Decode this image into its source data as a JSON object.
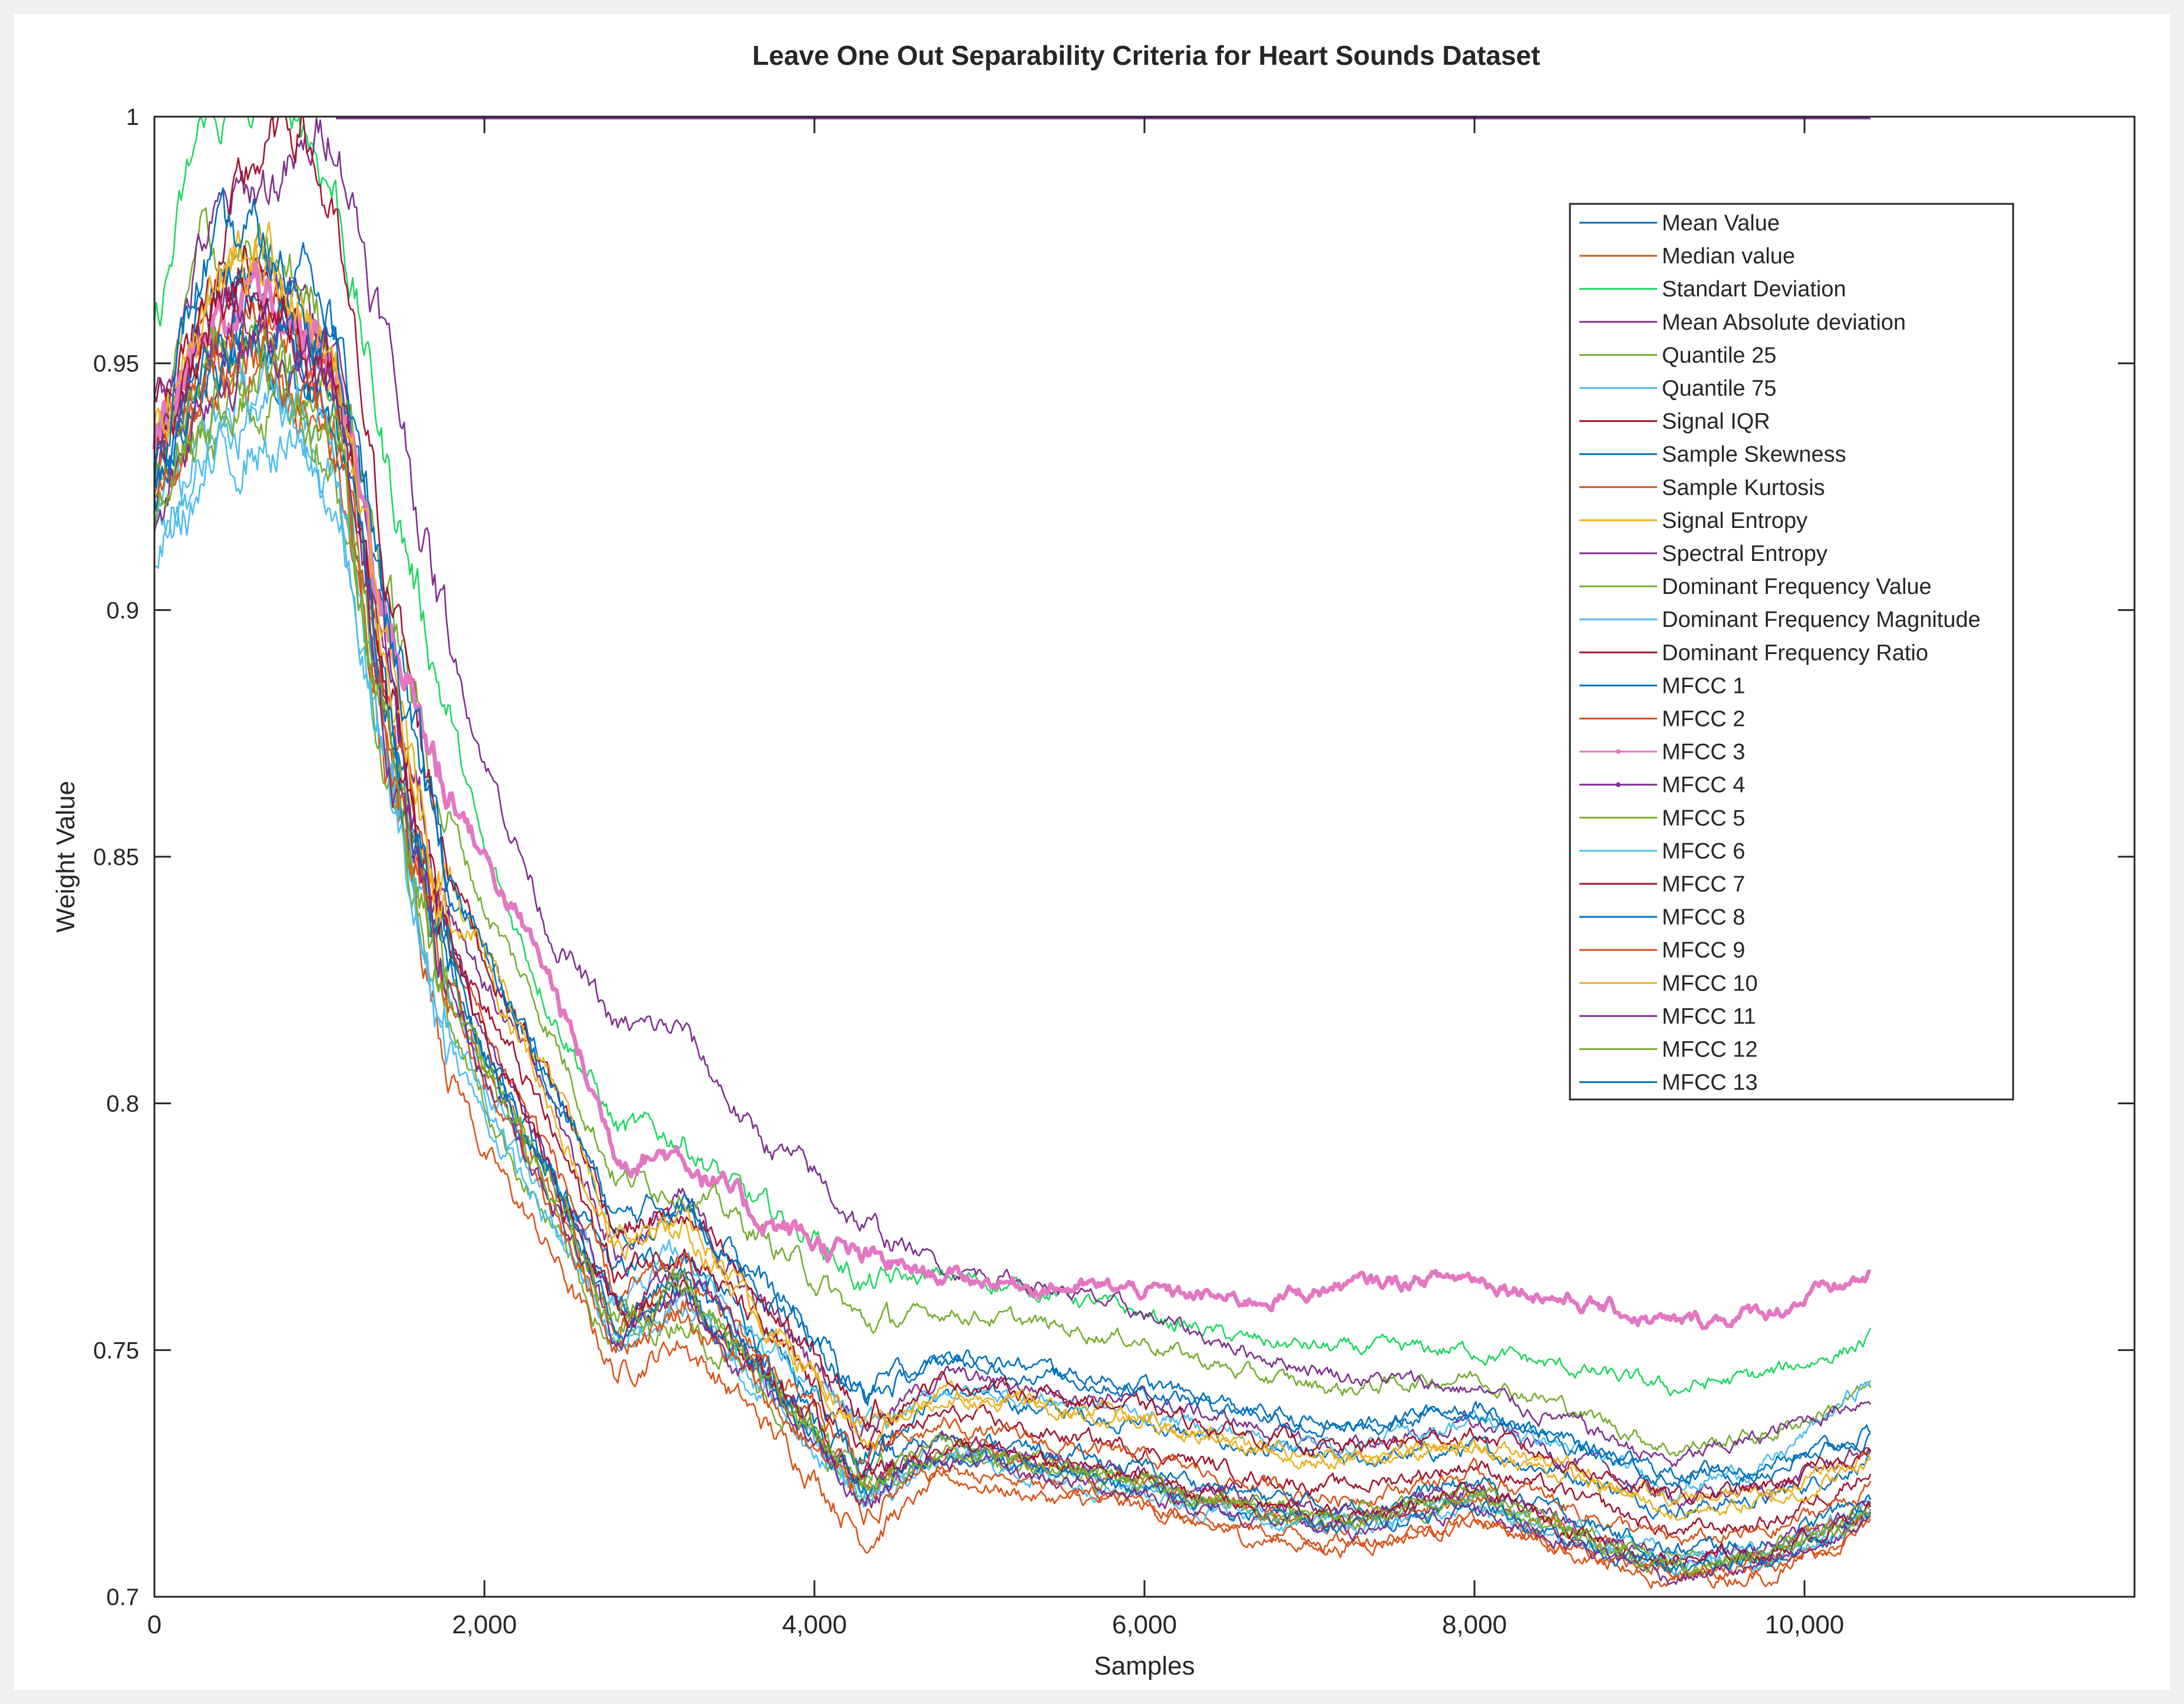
{
  "chart_data": {
    "type": "line",
    "title": "Leave One Out Separability Criteria for Heart Sounds Dataset",
    "xlabel": "Samples",
    "ylabel": "Weight Value",
    "xlim": [
      0,
      12000
    ],
    "ylim": [
      0.7,
      1
    ],
    "x_ticks": [
      0,
      2000,
      4000,
      6000,
      8000,
      10000
    ],
    "x_tick_labels": [
      "0",
      "2,000",
      "4,000",
      "6,000",
      "8,000",
      "10,000"
    ],
    "y_ticks": [
      0.7,
      0.75,
      0.8,
      0.85,
      0.9,
      0.95,
      1
    ],
    "y_tick_labels": [
      "0.7",
      "0.75",
      "0.8",
      "0.85",
      "0.9",
      "0.95",
      "1"
    ],
    "grid": false,
    "legend_position": "top-right",
    "x_anchors": [
      0,
      300,
      600,
      900,
      1100,
      1400,
      1700,
      2000,
      2400,
      2800,
      3200,
      3600,
      4000,
      4300,
      4800,
      5400,
      6000,
      6600,
      7200,
      8000,
      8600,
      9200,
      9800,
      10400
    ],
    "series": [
      {
        "name": "Mean Value",
        "color": "#0072bd",
        "values": [
          0.925,
          0.945,
          0.955,
          0.945,
          0.935,
          0.88,
          0.835,
          0.81,
          0.785,
          0.765,
          0.77,
          0.755,
          0.74,
          0.73,
          0.742,
          0.738,
          0.735,
          0.73,
          0.727,
          0.73,
          0.725,
          0.718,
          0.72,
          0.728
        ]
      },
      {
        "name": "Median value",
        "color": "#d95319",
        "values": [
          0.92,
          0.94,
          0.95,
          0.94,
          0.93,
          0.87,
          0.82,
          0.79,
          0.77,
          0.745,
          0.752,
          0.738,
          0.725,
          0.712,
          0.724,
          0.72,
          0.718,
          0.712,
          0.71,
          0.715,
          0.71,
          0.704,
          0.706,
          0.715
        ]
      },
      {
        "name": "Standart Deviation",
        "color": "#1ed760",
        "values": [
          0.955,
          1.0,
          1.0,
          1.0,
          0.985,
          0.93,
          0.89,
          0.85,
          0.82,
          0.795,
          0.793,
          0.78,
          0.773,
          0.763,
          0.765,
          0.762,
          0.757,
          0.752,
          0.75,
          0.75,
          0.746,
          0.742,
          0.745,
          0.752
        ]
      },
      {
        "name": "Mean Absolute deviation",
        "color": "#7e2f8e",
        "values": [
          0.93,
          0.955,
          0.965,
          0.96,
          0.95,
          0.895,
          0.85,
          0.825,
          0.8,
          0.77,
          0.78,
          0.762,
          0.748,
          0.735,
          0.745,
          0.742,
          0.74,
          0.735,
          0.73,
          0.735,
          0.728,
          0.72,
          0.722,
          0.73
        ]
      },
      {
        "name": "Quantile 25",
        "color": "#77ac30",
        "values": [
          0.93,
          0.975,
          0.97,
          0.965,
          0.955,
          0.905,
          0.865,
          0.84,
          0.815,
          0.785,
          0.783,
          0.775,
          0.765,
          0.755,
          0.758,
          0.755,
          0.752,
          0.745,
          0.742,
          0.745,
          0.738,
          0.73,
          0.733,
          0.742
        ]
      },
      {
        "name": "Quantile 75",
        "color": "#4dbeee",
        "values": [
          0.92,
          0.93,
          0.94,
          0.935,
          0.925,
          0.875,
          0.83,
          0.805,
          0.785,
          0.76,
          0.77,
          0.755,
          0.742,
          0.733,
          0.742,
          0.74,
          0.737,
          0.733,
          0.73,
          0.736,
          0.73,
          0.722,
          0.727,
          0.744
        ]
      },
      {
        "name": "Signal IQR",
        "color": "#a2142f",
        "values": [
          0.94,
          0.96,
          0.97,
          0.96,
          0.95,
          0.89,
          0.845,
          0.82,
          0.795,
          0.765,
          0.772,
          0.757,
          0.742,
          0.73,
          0.737,
          0.733,
          0.73,
          0.725,
          0.722,
          0.727,
          0.72,
          0.713,
          0.715,
          0.726
        ]
      },
      {
        "name": "Sample Skewness",
        "color": "#0072bd",
        "values": [
          0.93,
          0.96,
          0.97,
          0.965,
          0.955,
          0.9,
          0.855,
          0.83,
          0.805,
          0.775,
          0.78,
          0.766,
          0.752,
          0.74,
          0.748,
          0.745,
          0.742,
          0.738,
          0.733,
          0.738,
          0.73,
          0.725,
          0.727,
          0.733
        ]
      },
      {
        "name": "Sample Kurtosis",
        "color": "#d95319",
        "values": [
          0.93,
          0.955,
          0.96,
          0.955,
          0.945,
          0.885,
          0.84,
          0.815,
          0.79,
          0.76,
          0.767,
          0.752,
          0.738,
          0.727,
          0.735,
          0.731,
          0.728,
          0.723,
          0.72,
          0.725,
          0.718,
          0.711,
          0.713,
          0.722
        ]
      },
      {
        "name": "Signal Entropy",
        "color": "#edb120",
        "values": [
          0.935,
          0.96,
          0.975,
          0.96,
          0.945,
          0.885,
          0.845,
          0.83,
          0.8,
          0.77,
          0.775,
          0.76,
          0.745,
          0.735,
          0.742,
          0.739,
          0.736,
          0.731,
          0.728,
          0.731,
          0.726,
          0.719,
          0.721,
          0.729
        ]
      },
      {
        "name": "Spectral Entropy",
        "color": "#7e2f8e",
        "values": [
          0.94,
          0.975,
          0.985,
          0.99,
          1.0,
          0.955,
          0.905,
          0.87,
          0.835,
          0.815,
          0.815,
          0.795,
          0.785,
          0.775,
          0.767,
          0.763,
          0.757,
          0.75,
          0.745,
          0.742,
          0.735,
          0.727,
          0.733,
          0.741
        ]
      },
      {
        "name": "Dominant Frequency Value",
        "color": "#77ac30",
        "values": [
          0.925,
          0.935,
          0.945,
          0.94,
          0.93,
          0.87,
          0.825,
          0.8,
          0.775,
          0.75,
          0.757,
          0.745,
          0.731,
          0.72,
          0.729,
          0.725,
          0.722,
          0.717,
          0.714,
          0.72,
          0.713,
          0.707,
          0.709,
          0.718
        ]
      },
      {
        "name": "Dominant Frequency Magnitude",
        "color": "#4dbeee",
        "values": [
          0.91,
          0.925,
          0.935,
          0.93,
          0.92,
          0.865,
          0.82,
          0.797,
          0.775,
          0.752,
          0.759,
          0.745,
          0.732,
          0.721,
          0.73,
          0.726,
          0.723,
          0.718,
          0.715,
          0.721,
          0.714,
          0.708,
          0.71,
          0.719
        ]
      },
      {
        "name": "Dominant Frequency Ratio",
        "color": "#a2142f",
        "values": [
          0.93,
          0.96,
          0.99,
          1.0,
          0.975,
          0.91,
          0.86,
          0.83,
          0.805,
          0.775,
          0.777,
          0.763,
          0.748,
          0.737,
          0.744,
          0.741,
          0.738,
          0.733,
          0.73,
          0.733,
          0.727,
          0.72,
          0.722,
          0.73
        ]
      },
      {
        "name": "MFCC 1",
        "color": "#0072bd",
        "values": [
          0.92,
          0.95,
          0.96,
          0.955,
          0.945,
          0.88,
          0.835,
          0.81,
          0.787,
          0.758,
          0.765,
          0.75,
          0.737,
          0.725,
          0.733,
          0.729,
          0.726,
          0.721,
          0.718,
          0.723,
          0.716,
          0.709,
          0.711,
          0.72
        ]
      },
      {
        "name": "MFCC 2",
        "color": "#d95319",
        "values": [
          0.925,
          0.95,
          0.958,
          0.952,
          0.94,
          0.878,
          0.832,
          0.807,
          0.783,
          0.755,
          0.762,
          0.748,
          0.734,
          0.722,
          0.73,
          0.726,
          0.723,
          0.718,
          0.715,
          0.72,
          0.713,
          0.706,
          0.708,
          0.717
        ]
      },
      {
        "name": "MFCC 3",
        "color": "#e377c2",
        "values": [
          0.935,
          0.955,
          0.965,
          0.955,
          0.95,
          0.9,
          0.87,
          0.85,
          0.825,
          0.79,
          0.79,
          0.778,
          0.772,
          0.768,
          0.765,
          0.763,
          0.762,
          0.76,
          0.763,
          0.765,
          0.76,
          0.755,
          0.758,
          0.765
        ]
      },
      {
        "name": "MFCC 4",
        "color": "#7e2f8e",
        "values": [
          0.93,
          0.955,
          0.962,
          0.958,
          0.947,
          0.885,
          0.838,
          0.813,
          0.788,
          0.758,
          0.765,
          0.75,
          0.736,
          0.724,
          0.732,
          0.728,
          0.725,
          0.72,
          0.717,
          0.722,
          0.715,
          0.708,
          0.71,
          0.719
        ]
      },
      {
        "name": "MFCC 5",
        "color": "#77ac30",
        "values": [
          0.925,
          0.95,
          0.955,
          0.95,
          0.94,
          0.878,
          0.832,
          0.808,
          0.784,
          0.756,
          0.763,
          0.749,
          0.735,
          0.723,
          0.731,
          0.727,
          0.724,
          0.719,
          0.716,
          0.721,
          0.714,
          0.707,
          0.709,
          0.718
        ]
      },
      {
        "name": "MFCC 6",
        "color": "#4dbeee",
        "values": [
          0.915,
          0.935,
          0.945,
          0.94,
          0.93,
          0.87,
          0.826,
          0.802,
          0.779,
          0.752,
          0.759,
          0.745,
          0.731,
          0.72,
          0.728,
          0.724,
          0.721,
          0.716,
          0.713,
          0.718,
          0.711,
          0.705,
          0.707,
          0.716
        ]
      },
      {
        "name": "MFCC 7",
        "color": "#a2142f",
        "values": [
          0.93,
          0.955,
          0.962,
          0.955,
          0.945,
          0.883,
          0.837,
          0.812,
          0.787,
          0.757,
          0.764,
          0.749,
          0.735,
          0.723,
          0.731,
          0.727,
          0.724,
          0.719,
          0.716,
          0.721,
          0.714,
          0.707,
          0.709,
          0.718
        ]
      },
      {
        "name": "MFCC 8",
        "color": "#0072bd",
        "values": [
          0.925,
          0.95,
          0.958,
          0.952,
          0.942,
          0.88,
          0.834,
          0.809,
          0.785,
          0.755,
          0.762,
          0.747,
          0.733,
          0.721,
          0.729,
          0.725,
          0.722,
          0.717,
          0.714,
          0.719,
          0.712,
          0.705,
          0.707,
          0.716
        ]
      },
      {
        "name": "MFCC 9",
        "color": "#d95319",
        "values": [
          0.92,
          0.945,
          0.952,
          0.947,
          0.937,
          0.875,
          0.829,
          0.804,
          0.78,
          0.751,
          0.758,
          0.744,
          0.73,
          0.718,
          0.726,
          0.722,
          0.719,
          0.714,
          0.711,
          0.716,
          0.709,
          0.703,
          0.705,
          0.714
        ]
      },
      {
        "name": "MFCC 10",
        "color": "#edb120",
        "values": [
          0.935,
          0.96,
          0.97,
          0.96,
          0.95,
          0.89,
          0.845,
          0.832,
          0.805,
          0.772,
          0.776,
          0.76,
          0.745,
          0.733,
          0.741,
          0.738,
          0.735,
          0.73,
          0.727,
          0.73,
          0.724,
          0.717,
          0.719,
          0.727
        ]
      },
      {
        "name": "MFCC 11",
        "color": "#7e2f8e",
        "values": [
          0.92,
          0.945,
          0.955,
          0.95,
          0.94,
          0.878,
          0.832,
          0.806,
          0.782,
          0.753,
          0.76,
          0.746,
          0.732,
          0.72,
          0.728,
          0.724,
          0.721,
          0.716,
          0.713,
          0.718,
          0.711,
          0.704,
          0.706,
          0.715
        ]
      },
      {
        "name": "MFCC 12",
        "color": "#77ac30",
        "values": [
          0.92,
          0.94,
          0.95,
          0.945,
          0.935,
          0.875,
          0.83,
          0.806,
          0.783,
          0.755,
          0.762,
          0.748,
          0.734,
          0.722,
          0.73,
          0.726,
          0.723,
          0.718,
          0.715,
          0.72,
          0.713,
          0.706,
          0.708,
          0.717
        ]
      },
      {
        "name": "MFCC 13",
        "color": "#0072bd",
        "values": [
          0.93,
          0.97,
          0.975,
          0.965,
          0.955,
          0.9,
          0.855,
          0.83,
          0.805,
          0.776,
          0.781,
          0.767,
          0.752,
          0.741,
          0.749,
          0.746,
          0.743,
          0.738,
          0.734,
          0.739,
          0.731,
          0.724,
          0.726,
          0.733
        ]
      }
    ],
    "constant_line": {
      "x": [
        1100,
        10400
      ],
      "value": 1.0,
      "color": "#7e2f8e"
    }
  }
}
